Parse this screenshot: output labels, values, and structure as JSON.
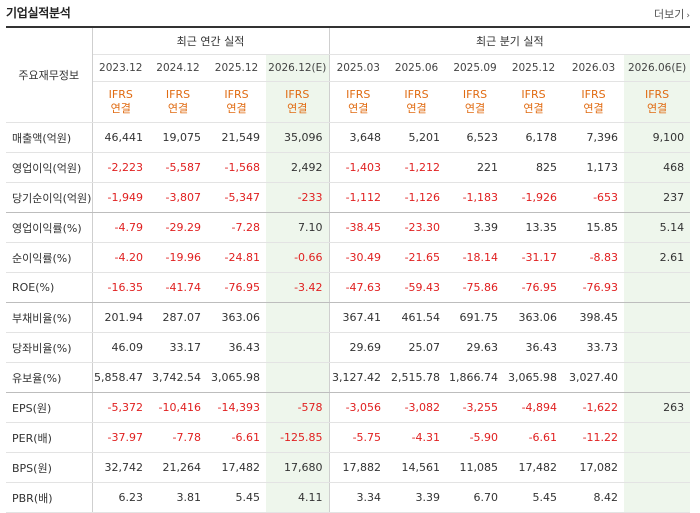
{
  "title": "기업실적분석",
  "more_label": "더보기",
  "headers": {
    "corner": "주요재무정보",
    "annual_group": "최근 연간 실적",
    "quarter_group": "최근 분기 실적",
    "annual_periods": [
      "2023.12",
      "2024.12",
      "2025.12",
      "2026.12(E)"
    ],
    "quarter_periods": [
      "2025.03",
      "2025.06",
      "2025.09",
      "2025.12",
      "2026.03",
      "2026.06(E)"
    ],
    "basis_top": "IFRS",
    "basis_bottom": "연결"
  },
  "rows": [
    {
      "label": "매출액(억원)",
      "values": [
        "46,441",
        "19,075",
        "21,549",
        "35,096",
        "3,648",
        "5,201",
        "6,523",
        "6,178",
        "7,396",
        "9,100"
      ]
    },
    {
      "label": "영업이익(억원)",
      "values": [
        "-2,223",
        "-5,587",
        "-1,568",
        "2,492",
        "-1,403",
        "-1,212",
        "221",
        "825",
        "1,173",
        "468"
      ]
    },
    {
      "label": "당기순이익(억원)",
      "values": [
        "-1,949",
        "-3,807",
        "-5,347",
        "-233",
        "-1,112",
        "-1,126",
        "-1,183",
        "-1,926",
        "-653",
        "237"
      ]
    },
    {
      "label": "영업이익률(%)",
      "values": [
        "-4.79",
        "-29.29",
        "-7.28",
        "7.10",
        "-38.45",
        "-23.30",
        "3.39",
        "13.35",
        "15.85",
        "5.14"
      ]
    },
    {
      "label": "순이익률(%)",
      "values": [
        "-4.20",
        "-19.96",
        "-24.81",
        "-0.66",
        "-30.49",
        "-21.65",
        "-18.14",
        "-31.17",
        "-8.83",
        "2.61"
      ]
    },
    {
      "label": "ROE(%)",
      "values": [
        "-16.35",
        "-41.74",
        "-76.95",
        "-3.42",
        "-47.63",
        "-59.43",
        "-75.86",
        "-76.95",
        "-76.93",
        ""
      ]
    },
    {
      "label": "부채비율(%)",
      "values": [
        "201.94",
        "287.07",
        "363.06",
        "",
        "367.41",
        "461.54",
        "691.75",
        "363.06",
        "398.45",
        ""
      ]
    },
    {
      "label": "당좌비율(%)",
      "values": [
        "46.09",
        "33.17",
        "36.43",
        "",
        "29.69",
        "25.07",
        "29.63",
        "36.43",
        "33.73",
        ""
      ]
    },
    {
      "label": "유보율(%)",
      "values": [
        "5,858.47",
        "3,742.54",
        "3,065.98",
        "",
        "3,127.42",
        "2,515.78",
        "1,866.74",
        "3,065.98",
        "3,027.40",
        ""
      ]
    },
    {
      "label": "EPS(원)",
      "values": [
        "-5,372",
        "-10,416",
        "-14,393",
        "-578",
        "-3,056",
        "-3,082",
        "-3,255",
        "-4,894",
        "-1,622",
        "263"
      ]
    },
    {
      "label": "PER(배)",
      "values": [
        "-37.97",
        "-7.78",
        "-6.61",
        "-125.85",
        "-5.75",
        "-4.31",
        "-5.90",
        "-6.61",
        "-11.22",
        ""
      ]
    },
    {
      "label": "BPS(원)",
      "values": [
        "32,742",
        "21,264",
        "17,482",
        "17,680",
        "17,882",
        "14,561",
        "11,085",
        "17,482",
        "17,082",
        ""
      ]
    },
    {
      "label": "PBR(배)",
      "values": [
        "6.23",
        "3.81",
        "5.45",
        "4.11",
        "3.34",
        "3.39",
        "6.70",
        "5.45",
        "8.42",
        ""
      ]
    }
  ]
}
